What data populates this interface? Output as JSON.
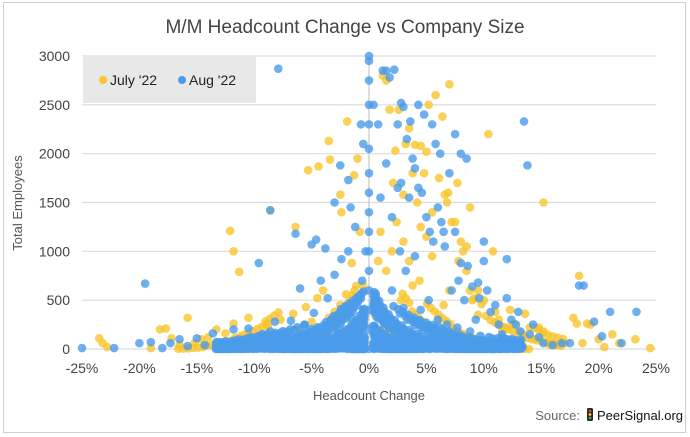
{
  "chart_data": {
    "type": "scatter",
    "title": "M/M Headcount Change vs Company Size",
    "xlabel": "Headcount Change",
    "ylabel": "Total Employees",
    "xlim": [
      -0.25,
      0.25
    ],
    "ylim": [
      0,
      3000
    ],
    "x_ticks": [
      -0.25,
      -0.2,
      -0.15,
      -0.1,
      -0.05,
      0,
      0.05,
      0.1,
      0.15,
      0.2,
      0.25
    ],
    "x_tick_labels": [
      "-25%",
      "-20%",
      "-15%",
      "-10%",
      "-5%",
      "0%",
      "5%",
      "10%",
      "15%",
      "20%",
      "25%"
    ],
    "y_ticks": [
      0,
      500,
      1000,
      1500,
      2000,
      2500,
      3000
    ],
    "y_tick_labels": [
      "0",
      "500",
      "1000",
      "1500",
      "2000",
      "2500",
      "3000"
    ],
    "grid": true,
    "legend_position": "top-left",
    "series": [
      {
        "name": "July '22",
        "color": "#F9C42C",
        "points": [
          [
            -0.235,
            110
          ],
          [
            -0.232,
            60
          ],
          [
            -0.228,
            20
          ],
          [
            -0.19,
            10
          ],
          [
            -0.182,
            200
          ],
          [
            -0.177,
            210
          ],
          [
            -0.172,
            110
          ],
          [
            -0.165,
            40
          ],
          [
            -0.158,
            320
          ],
          [
            -0.152,
            60
          ],
          [
            -0.146,
            100
          ],
          [
            -0.14,
            120
          ],
          [
            -0.133,
            200
          ],
          [
            -0.125,
            160
          ],
          [
            -0.118,
            260
          ],
          [
            -0.112,
            40
          ],
          [
            -0.105,
            320
          ],
          [
            -0.1,
            60
          ],
          [
            -0.095,
            90
          ],
          [
            -0.088,
            230
          ],
          [
            -0.083,
            60
          ],
          [
            -0.077,
            300
          ],
          [
            -0.072,
            120
          ],
          [
            -0.066,
            360
          ],
          [
            -0.061,
            200
          ],
          [
            -0.055,
            430
          ],
          [
            -0.05,
            280
          ],
          [
            -0.045,
            520
          ],
          [
            -0.04,
            600
          ],
          [
            -0.035,
            320
          ],
          [
            -0.03,
            380
          ],
          [
            -0.025,
            450
          ],
          [
            -0.02,
            560
          ],
          [
            -0.015,
            250
          ],
          [
            -0.01,
            300
          ],
          [
            -0.005,
            650
          ],
          [
            -0.086,
            1420
          ],
          [
            -0.113,
            790
          ],
          [
            -0.118,
            1000
          ],
          [
            -0.121,
            1210
          ],
          [
            -0.064,
            1250
          ],
          [
            -0.034,
            1940
          ],
          [
            -0.024,
            1400
          ],
          [
            -0.015,
            880
          ],
          [
            -0.013,
            1780
          ],
          [
            -0.008,
            1200
          ],
          [
            -0.01,
            1950
          ],
          [
            -0.044,
            1870
          ],
          [
            -0.053,
            1830
          ],
          [
            -0.019,
            2330
          ],
          [
            -0.035,
            2130
          ],
          [
            -0.025,
            1580
          ],
          [
            0.005,
            350
          ],
          [
            0.008,
            900
          ],
          [
            0.012,
            2800
          ],
          [
            0.015,
            2750
          ],
          [
            0.018,
            2450
          ],
          [
            0.021,
            1700
          ],
          [
            0.023,
            2030
          ],
          [
            0.026,
            2450
          ],
          [
            0.03,
            1580
          ],
          [
            0.032,
            2100
          ],
          [
            0.035,
            2260
          ],
          [
            0.038,
            1800
          ],
          [
            0.04,
            2090
          ],
          [
            0.042,
            1500
          ],
          [
            0.045,
            2080
          ],
          [
            0.048,
            1800
          ],
          [
            0.05,
            2020
          ],
          [
            0.052,
            2500
          ],
          [
            0.055,
            1400
          ],
          [
            0.058,
            2600
          ],
          [
            0.061,
            1750
          ],
          [
            0.064,
            2380
          ],
          [
            0.066,
            1580
          ],
          [
            0.068,
            1500
          ],
          [
            0.07,
            2710
          ],
          [
            0.072,
            1300
          ],
          [
            0.075,
            1300
          ],
          [
            0.078,
            900
          ],
          [
            0.08,
            1100
          ],
          [
            0.082,
            1000
          ],
          [
            0.085,
            800
          ],
          [
            0.088,
            600
          ],
          [
            0.09,
            500
          ],
          [
            0.092,
            520
          ],
          [
            0.095,
            600
          ],
          [
            0.098,
            460
          ],
          [
            0.1,
            500
          ],
          [
            0.102,
            340
          ],
          [
            0.104,
            2200
          ],
          [
            0.108,
            1000
          ],
          [
            0.11,
            380
          ],
          [
            0.113,
            300
          ],
          [
            0.116,
            180
          ],
          [
            0.12,
            220
          ],
          [
            0.123,
            400
          ],
          [
            0.126,
            260
          ],
          [
            0.13,
            180
          ],
          [
            0.133,
            100
          ],
          [
            0.136,
            360
          ],
          [
            0.14,
            220
          ],
          [
            0.145,
            100
          ],
          [
            0.148,
            220
          ],
          [
            0.152,
            1500
          ],
          [
            0.155,
            60
          ],
          [
            0.158,
            40
          ],
          [
            0.165,
            40
          ],
          [
            0.171,
            60
          ],
          [
            0.178,
            320
          ],
          [
            0.181,
            260
          ],
          [
            0.183,
            750
          ],
          [
            0.186,
            60
          ],
          [
            0.19,
            260
          ],
          [
            0.193,
            250
          ],
          [
            0.2,
            100
          ],
          [
            0.205,
            20
          ],
          [
            0.212,
            150
          ],
          [
            0.218,
            60
          ],
          [
            0.232,
            100
          ],
          [
            0.245,
            10
          ],
          [
            0.06,
            300
          ],
          [
            0.065,
            450
          ],
          [
            0.07,
            600
          ],
          [
            0.044,
            700
          ],
          [
            0.035,
            900
          ],
          [
            0.03,
            1100
          ],
          [
            0.024,
            1300
          ],
          [
            0.02,
            1000
          ],
          [
            0.015,
            800
          ],
          [
            0.01,
            1200
          ],
          [
            0.05,
            1150
          ],
          [
            0.055,
            950
          ],
          [
            0.085,
            1050
          ],
          [
            0.095,
            350
          ],
          [
            0.088,
            1450
          ],
          [
            0.077,
            1700
          ],
          [
            0.069,
            1600
          ],
          [
            0.045,
            1250
          ],
          [
            0.038,
            650
          ],
          [
            0.028,
            500
          ]
        ]
      },
      {
        "name": "Aug '22",
        "color": "#4A9BEA",
        "points": [
          [
            -0.25,
            10
          ],
          [
            -0.222,
            10
          ],
          [
            -0.2,
            60
          ],
          [
            -0.195,
            670
          ],
          [
            -0.19,
            70
          ],
          [
            -0.18,
            10
          ],
          [
            -0.173,
            60
          ],
          [
            -0.165,
            100
          ],
          [
            -0.158,
            30
          ],
          [
            -0.15,
            110
          ],
          [
            -0.143,
            40
          ],
          [
            -0.136,
            160
          ],
          [
            -0.13,
            70
          ],
          [
            -0.124,
            30
          ],
          [
            -0.118,
            200
          ],
          [
            -0.111,
            10
          ],
          [
            -0.105,
            210
          ],
          [
            -0.1,
            10
          ],
          [
            -0.096,
            880
          ],
          [
            -0.092,
            40
          ],
          [
            -0.086,
            180
          ],
          [
            -0.082,
            280
          ],
          [
            -0.079,
            2870
          ],
          [
            -0.076,
            80
          ],
          [
            -0.072,
            160
          ],
          [
            -0.068,
            290
          ],
          [
            -0.064,
            60
          ],
          [
            -0.06,
            620
          ],
          [
            -0.056,
            250
          ],
          [
            -0.052,
            120
          ],
          [
            -0.048,
            370
          ],
          [
            -0.045,
            200
          ],
          [
            -0.042,
            700
          ],
          [
            -0.039,
            150
          ],
          [
            -0.036,
            520
          ],
          [
            -0.033,
            300
          ],
          [
            -0.03,
            760
          ],
          [
            -0.027,
            200
          ],
          [
            -0.024,
            920
          ],
          [
            -0.021,
            420
          ],
          [
            -0.018,
            1000
          ],
          [
            -0.015,
            320
          ],
          [
            -0.012,
            1250
          ],
          [
            -0.009,
            500
          ],
          [
            -0.006,
            700
          ],
          [
            -0.003,
            1000
          ],
          [
            -0.086,
            1420
          ],
          [
            -0.064,
            1180
          ],
          [
            -0.05,
            1070
          ],
          [
            -0.038,
            1030
          ],
          [
            -0.046,
            1120
          ],
          [
            -0.03,
            1500
          ],
          [
            -0.025,
            1880
          ],
          [
            -0.018,
            1730
          ],
          [
            -0.016,
            1450
          ],
          [
            -0.007,
            2300
          ],
          [
            -0.005,
            2100
          ],
          [
            0,
            3000
          ],
          [
            0,
            2950
          ],
          [
            0,
            2750
          ],
          [
            0,
            2500
          ],
          [
            0,
            2300
          ],
          [
            0,
            2050
          ],
          [
            0,
            1800
          ],
          [
            0,
            1600
          ],
          [
            0,
            1400
          ],
          [
            0,
            1200
          ],
          [
            0,
            1000
          ],
          [
            0,
            800
          ],
          [
            0,
            600
          ],
          [
            0,
            400
          ],
          [
            0,
            200
          ],
          [
            0,
            0
          ],
          [
            0.004,
            2500
          ],
          [
            0.008,
            2300
          ],
          [
            0.012,
            2850
          ],
          [
            0.015,
            2850
          ],
          [
            0.018,
            2780
          ],
          [
            0.022,
            2860
          ],
          [
            0.025,
            2300
          ],
          [
            0.028,
            2520
          ],
          [
            0.03,
            2480
          ],
          [
            0.033,
            2150
          ],
          [
            0.036,
            2330
          ],
          [
            0.038,
            1950
          ],
          [
            0.04,
            1850
          ],
          [
            0.043,
            1650
          ],
          [
            0.046,
            1600
          ],
          [
            0.05,
            1350
          ],
          [
            0.053,
            1200
          ],
          [
            0.056,
            1100
          ],
          [
            0.06,
            1450
          ],
          [
            0.063,
            1300
          ],
          [
            0.066,
            1050
          ],
          [
            0.07,
            1800
          ],
          [
            0.072,
            600
          ],
          [
            0.075,
            1200
          ],
          [
            0.078,
            700
          ],
          [
            0.08,
            880
          ],
          [
            0.083,
            500
          ],
          [
            0.086,
            850
          ],
          [
            0.09,
            640
          ],
          [
            0.093,
            300
          ],
          [
            0.096,
            520
          ],
          [
            0.1,
            900
          ],
          [
            0.103,
            600
          ],
          [
            0.106,
            380
          ],
          [
            0.11,
            450
          ],
          [
            0.113,
            250
          ],
          [
            0.116,
            150
          ],
          [
            0.12,
            520
          ],
          [
            0.124,
            300
          ],
          [
            0.128,
            250
          ],
          [
            0.132,
            180
          ],
          [
            0.135,
            2330
          ],
          [
            0.138,
            1880
          ],
          [
            0.14,
            150
          ],
          [
            0.143,
            250
          ],
          [
            0.148,
            120
          ],
          [
            0.152,
            60
          ],
          [
            0.16,
            40
          ],
          [
            0.168,
            60
          ],
          [
            0.175,
            60
          ],
          [
            0.183,
            650
          ],
          [
            0.187,
            650
          ],
          [
            0.196,
            280
          ],
          [
            0.203,
            130
          ],
          [
            0.21,
            380
          ],
          [
            0.22,
            60
          ],
          [
            0.233,
            380
          ],
          [
            0.095,
            680
          ],
          [
            0.12,
            920
          ],
          [
            0.1,
            1100
          ],
          [
            0.085,
            1950
          ],
          [
            0.08,
            2000
          ],
          [
            0.075,
            2200
          ],
          [
            0.015,
            1900
          ],
          [
            0.025,
            1650
          ],
          [
            0.028,
            1700
          ],
          [
            0.035,
            1550
          ],
          [
            0.043,
            2500
          ],
          [
            0.048,
            2400
          ],
          [
            0.055,
            2300
          ],
          [
            0.058,
            2100
          ],
          [
            0.062,
            2000
          ],
          [
            0.065,
            1200
          ],
          [
            0.01,
            1550
          ],
          [
            0.02,
            1350
          ],
          [
            0.027,
            1000
          ],
          [
            0.032,
            800
          ],
          [
            0.04,
            950
          ],
          [
            0.045,
            400
          ],
          [
            0.052,
            500
          ],
          [
            0.06,
            300
          ],
          [
            0.068,
            250
          ],
          [
            0.077,
            220
          ],
          [
            0.088,
            180
          ],
          [
            0.02,
            600
          ],
          [
            0.03,
            420
          ],
          [
            0.012,
            300
          ],
          [
            0.006,
            150
          ],
          [
            0.025,
            80
          ],
          [
            0.04,
            120
          ],
          [
            0.055,
            80
          ],
          [
            0.07,
            60
          ],
          [
            0.09,
            50
          ],
          [
            0.105,
            40
          ],
          [
            0.125,
            60
          ],
          [
            0.13,
            380
          ]
        ]
      }
    ]
  },
  "source": {
    "label": "Source:",
    "brand": "PeerSignal.org",
    "icon": "traffic-light-icon"
  }
}
